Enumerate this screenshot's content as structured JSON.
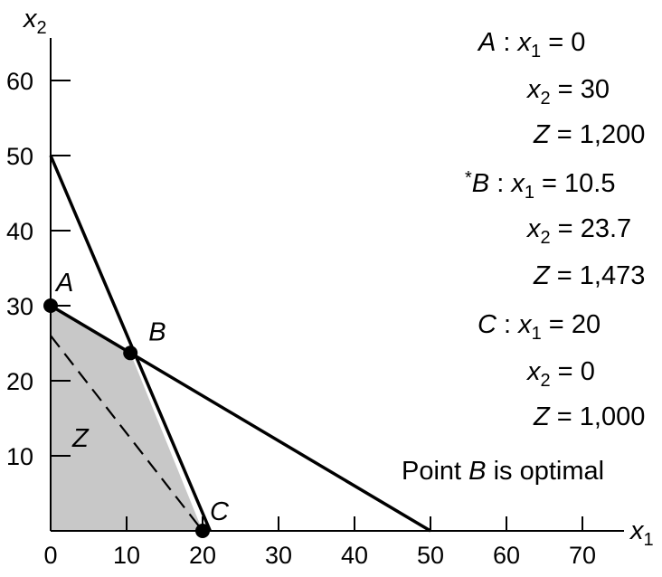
{
  "chart_data": {
    "type": "line",
    "xlabel": "x1",
    "ylabel": "x2",
    "xlim": [
      0,
      77
    ],
    "ylim": [
      0,
      66
    ],
    "x_ticks": [
      0,
      10,
      20,
      30,
      40,
      50,
      60,
      70
    ],
    "y_ticks": [
      10,
      20,
      30,
      40,
      50,
      60
    ],
    "x_tick_labels": [
      "0",
      "10",
      "20",
      "30",
      "40",
      "50",
      "60",
      "70"
    ],
    "y_tick_labels": [
      "10",
      "20",
      "30",
      "40",
      "50",
      "60"
    ],
    "series": [
      {
        "style": "solid",
        "x": [
          0,
          50
        ],
        "y": [
          30,
          0
        ]
      },
      {
        "style": "solid",
        "x": [
          0,
          21
        ],
        "y": [
          50,
          0
        ]
      },
      {
        "name": "Z",
        "style": "dashed",
        "x": [
          0,
          20
        ],
        "y": [
          26,
          0
        ]
      }
    ],
    "feasible_region": {
      "x": [
        0,
        0,
        10.5,
        20
      ],
      "y": [
        0,
        30,
        23.7,
        0
      ],
      "color": "#c8c8c8"
    },
    "points": [
      {
        "label": "A",
        "x": 0,
        "y": 30
      },
      {
        "label": "B",
        "x": 10.5,
        "y": 23.7
      },
      {
        "label": "C",
        "x": 20,
        "y": 0
      }
    ],
    "annotations": {
      "A": {
        "point": "A",
        "x1": "0",
        "x2": "30",
        "Z": "1,200"
      },
      "B": {
        "point": "B",
        "star": "*",
        "x1": "10.5",
        "x2": "23.7",
        "Z": "1,473"
      },
      "C": {
        "point": "C",
        "x1": "20",
        "x2": "0",
        "Z": "1,000"
      },
      "optimal_note": {
        "prefix": "Point",
        "point": "B",
        "suffix": "is optimal"
      }
    }
  }
}
